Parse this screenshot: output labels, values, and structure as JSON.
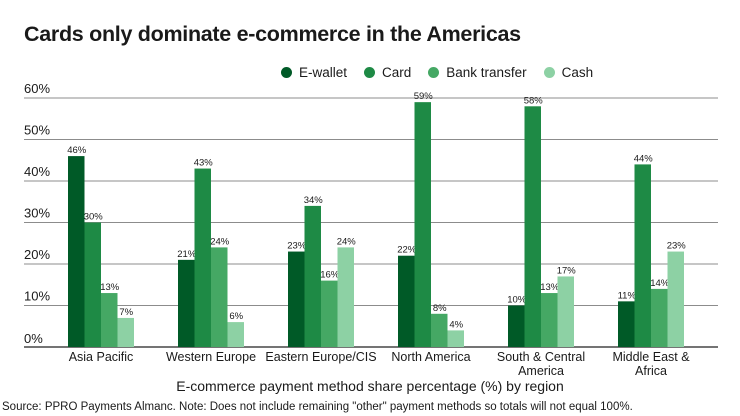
{
  "chart_data": {
    "type": "bar",
    "title": "Cards only dominate e-commerce in the Americas",
    "xlabel": "E-commerce payment method share percentage (%) by region",
    "ylabel": "",
    "source": "Source: PPRO Payments Almanc. Note: Does not include remaining \"other\" payment methods so totals will not equal 100%.",
    "categories": [
      [
        "Asia Pacific"
      ],
      [
        "Western Europe"
      ],
      [
        "Eastern Europe/CIS"
      ],
      [
        "North America"
      ],
      [
        "South & Central",
        "America"
      ],
      [
        "Middle East &",
        "Africa"
      ]
    ],
    "series": [
      {
        "name": "E-wallet",
        "color": "#005a27",
        "values": [
          46,
          21,
          23,
          22,
          10,
          11
        ]
      },
      {
        "name": "Card",
        "color": "#1e8a45",
        "values": [
          30,
          43,
          34,
          59,
          58,
          44
        ]
      },
      {
        "name": "Bank transfer",
        "color": "#45a864",
        "values": [
          13,
          24,
          16,
          8,
          13,
          14
        ]
      },
      {
        "name": "Cash",
        "color": "#8dd1a4",
        "values": [
          7,
          6,
          24,
          4,
          17,
          23
        ]
      }
    ],
    "ylim": [
      0,
      60
    ],
    "yticks": [
      0,
      10,
      20,
      30,
      40,
      50,
      60
    ],
    "ytick_labels": [
      "0%",
      "10%",
      "20%",
      "30%",
      "40%",
      "50%",
      "60%"
    ],
    "value_suffix": "%",
    "grid": true,
    "legend_position": "top-right"
  }
}
